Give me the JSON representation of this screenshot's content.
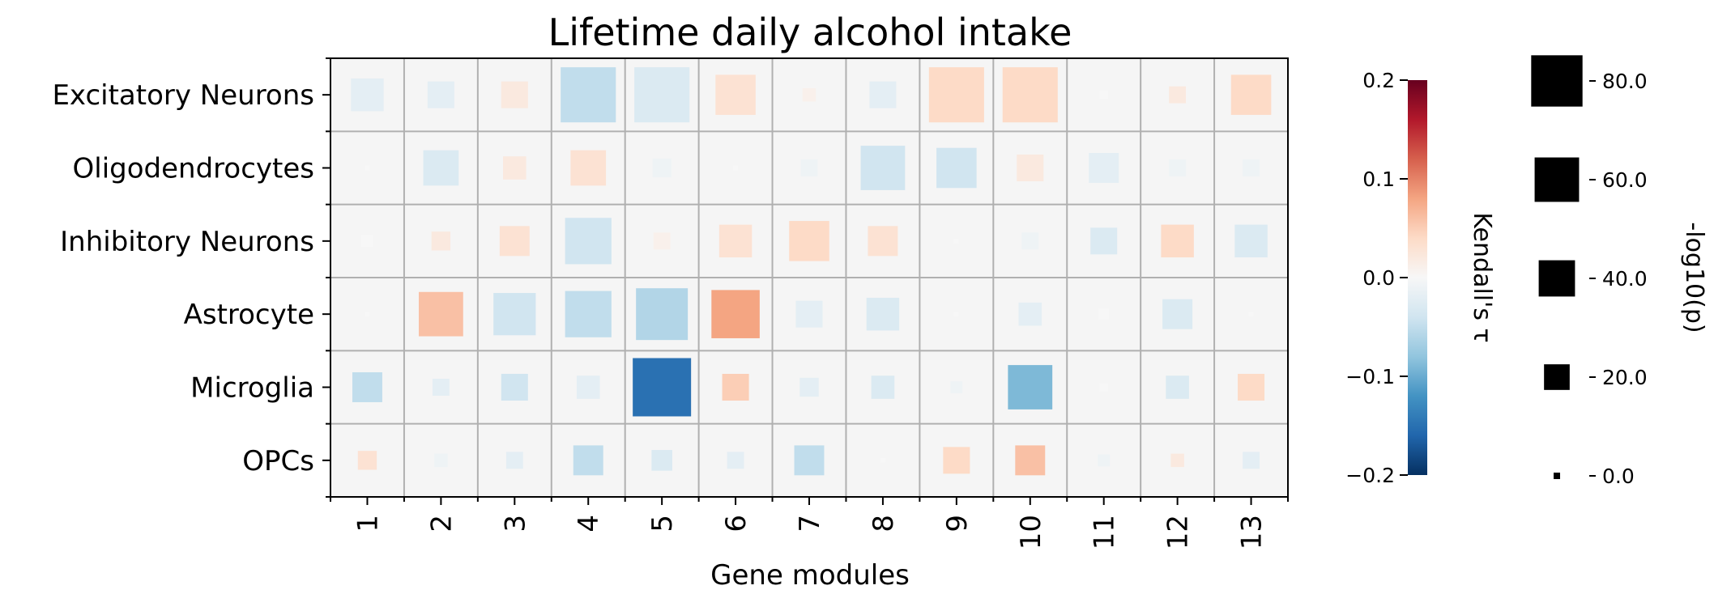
{
  "chart_data": {
    "type": "heatmap",
    "title": "Lifetime daily alcohol intake",
    "xlabel": "Gene modules",
    "ylabel": "",
    "x_categories": [
      "1",
      "2",
      "3",
      "4",
      "5",
      "6",
      "7",
      "8",
      "9",
      "10",
      "11",
      "12",
      "13"
    ],
    "y_categories": [
      "Excitatory Neurons",
      "Oligodendrocytes",
      "Inhibitory Neurons",
      "Astrocyte",
      "Microglia",
      "OPCs"
    ],
    "tau": [
      [
        -0.02,
        -0.02,
        0.02,
        -0.05,
        -0.03,
        0.03,
        0.01,
        -0.02,
        0.04,
        0.04,
        0.0,
        0.02,
        0.04
      ],
      [
        0.0,
        -0.03,
        0.02,
        0.03,
        -0.01,
        0.0,
        -0.01,
        -0.04,
        -0.04,
        0.02,
        -0.02,
        -0.01,
        -0.01
      ],
      [
        0.0,
        0.02,
        0.03,
        -0.04,
        0.01,
        0.03,
        0.04,
        0.03,
        0.0,
        -0.01,
        -0.03,
        0.04,
        -0.03
      ],
      [
        0.0,
        0.06,
        -0.04,
        -0.05,
        -0.06,
        0.08,
        -0.02,
        -0.03,
        0.0,
        -0.02,
        0.0,
        -0.03,
        0.0
      ],
      [
        -0.05,
        -0.02,
        -0.04,
        -0.02,
        -0.15,
        0.05,
        -0.02,
        -0.03,
        -0.01,
        -0.09,
        0.0,
        -0.03,
        0.04
      ],
      [
        0.03,
        -0.01,
        -0.02,
        -0.05,
        -0.03,
        -0.02,
        -0.05,
        0.0,
        0.04,
        0.06,
        -0.01,
        0.02,
        -0.02
      ]
    ],
    "neglog10p": [
      [
        30,
        20,
        20,
        85,
        85,
        45,
        5,
        20,
        85,
        85,
        2,
        8,
        45
      ],
      [
        0,
        35,
        15,
        35,
        10,
        0,
        8,
        55,
        45,
        20,
        25,
        8,
        8
      ],
      [
        4,
        10,
        25,
        60,
        8,
        30,
        45,
        25,
        0,
        8,
        20,
        30,
        30
      ],
      [
        0,
        55,
        50,
        60,
        75,
        65,
        20,
        30,
        0,
        15,
        3,
        25,
        0
      ],
      [
        25,
        8,
        20,
        15,
        95,
        20,
        10,
        15,
        4,
        55,
        2,
        15,
        20
      ],
      [
        10,
        5,
        8,
        25,
        12,
        8,
        25,
        0,
        20,
        25,
        4,
        5,
        8
      ]
    ],
    "colorbar": {
      "label": "Kendall's τ",
      "min": -0.2,
      "max": 0.2,
      "ticks": [
        0.2,
        0.1,
        0.0,
        -0.1,
        -0.2
      ],
      "tick_labels": [
        "0.2",
        "0.1",
        "0.0",
        "−0.1",
        "−0.2"
      ]
    },
    "size_legend": {
      "label": "-log10(p)",
      "values": [
        80,
        60,
        40,
        20,
        0
      ],
      "tick_labels": [
        "80.0",
        "60.0",
        "40.0",
        "20.0",
        "0.0"
      ]
    },
    "grid": true,
    "colormap": "RdBu_r",
    "colormap_stops": [
      "#053061",
      "#2166ac",
      "#4393c3",
      "#92c5de",
      "#d1e5f0",
      "#f7f7f7",
      "#fddbc7",
      "#f4a582",
      "#d6604d",
      "#b2182b",
      "#67001f"
    ],
    "cell_background": "#f5f5f5"
  }
}
